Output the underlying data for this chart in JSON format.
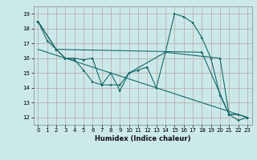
{
  "xlabel": "Humidex (Indice chaleur)",
  "bg_color": "#cce8e8",
  "grid_color": "#b8a8a8",
  "line_color": "#1a6b6b",
  "xlim": [
    -0.5,
    23.5
  ],
  "ylim": [
    11.5,
    19.5
  ],
  "xticks": [
    0,
    1,
    2,
    3,
    4,
    5,
    6,
    7,
    8,
    9,
    10,
    11,
    12,
    13,
    14,
    15,
    16,
    17,
    18,
    19,
    20,
    21,
    22,
    23
  ],
  "yticks": [
    12,
    13,
    14,
    15,
    16,
    17,
    18,
    19
  ],
  "line1_x": [
    0,
    1,
    2,
    3,
    4,
    5,
    6,
    7,
    8,
    9,
    10,
    11,
    12,
    13,
    14,
    15,
    16,
    17,
    18,
    19,
    20,
    21,
    22,
    23
  ],
  "line1_y": [
    18.5,
    17.2,
    16.6,
    16.0,
    15.9,
    15.2,
    14.4,
    14.2,
    15.0,
    13.8,
    15.0,
    15.2,
    15.4,
    14.0,
    16.4,
    19.0,
    18.8,
    18.4,
    17.4,
    16.0,
    13.5,
    12.2,
    11.8,
    12.0
  ],
  "line2_x": [
    0,
    2,
    3,
    4,
    5,
    6,
    7,
    8,
    9,
    10,
    14,
    20,
    21,
    22,
    23
  ],
  "line2_y": [
    18.5,
    16.6,
    16.0,
    16.0,
    15.9,
    16.0,
    14.2,
    14.2,
    14.2,
    15.0,
    16.4,
    16.0,
    12.2,
    12.2,
    12.0
  ],
  "line3_x": [
    0,
    2,
    18,
    21,
    22,
    23
  ],
  "line3_y": [
    18.5,
    16.6,
    16.4,
    12.2,
    12.2,
    12.0
  ],
  "line4_x": [
    0,
    23
  ],
  "line4_y": [
    16.6,
    12.0
  ]
}
